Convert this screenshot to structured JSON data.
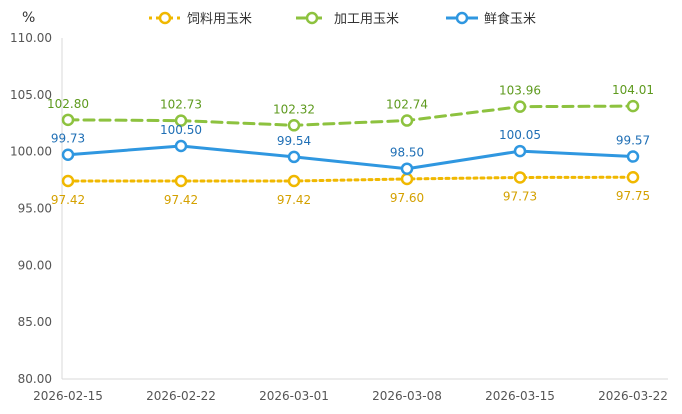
{
  "chart_data": {
    "type": "line",
    "title": "",
    "unit_label": "%",
    "xlabel": "",
    "ylabel": "",
    "categories": [
      "2026-02-15",
      "2026-02-22",
      "2026-03-01",
      "2026-03-08",
      "2026-03-15",
      "2026-03-22"
    ],
    "ylim": [
      80,
      110
    ],
    "yticks": [
      "110.00",
      "105.00",
      "100.00",
      "95.00",
      "90.00",
      "85.00",
      "80.00"
    ],
    "ytick_values": [
      110,
      105,
      100,
      95,
      90,
      85,
      80
    ],
    "grid": false,
    "legend_position": "top",
    "series": [
      {
        "name": "饲料用玉米",
        "color": "#f0b800",
        "label_color": "#d4a100",
        "line_style": "dotted",
        "values": [
          97.42,
          97.42,
          97.42,
          97.6,
          97.73,
          97.75
        ],
        "labels": [
          "97.42",
          "97.42",
          "97.42",
          "97.60",
          "97.73",
          "97.75"
        ],
        "label_position": "below"
      },
      {
        "name": "加工用玉米",
        "color": "#8dc23f",
        "label_color": "#5e9a1e",
        "line_style": "dashed",
        "values": [
          102.8,
          102.73,
          102.32,
          102.74,
          103.96,
          104.01
        ],
        "labels": [
          "102.80",
          "102.73",
          "102.32",
          "102.74",
          "103.96",
          "104.01"
        ],
        "label_position": "above"
      },
      {
        "name": "鲜食玉米",
        "color": "#2f97e0",
        "label_color": "#1f6fb5",
        "line_style": "solid",
        "values": [
          99.73,
          100.5,
          99.54,
          98.5,
          100.05,
          99.57
        ],
        "labels": [
          "99.73",
          "100.50",
          "99.54",
          "98.50",
          "100.05",
          "99.57"
        ],
        "label_position": "above"
      }
    ]
  }
}
